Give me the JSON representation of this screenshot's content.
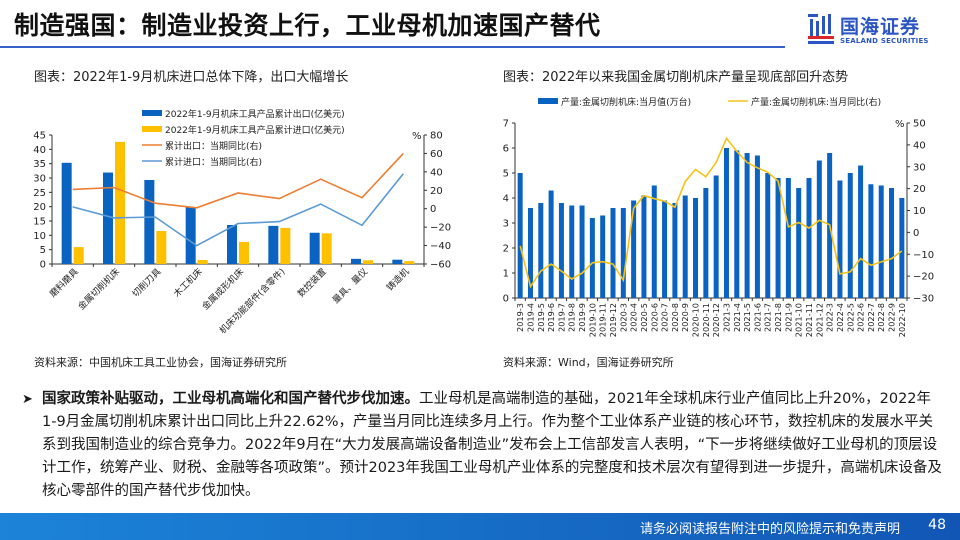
{
  "header": {
    "title": "制造强国：制造业投资上行，工业母机加速国产替代",
    "logo_cn": "国海证券",
    "logo_en": "SEALAND SECURITIES",
    "accent": "#3561c9"
  },
  "left_panel": {
    "title": "图表：2022年1-9月机床进口总体下降，出口大幅增长",
    "source": "资料来源：中国机床工具工业协会，国海证券研究所"
  },
  "right_panel": {
    "title": "图表：2022年以来我国金属切削机床产量呈现底部回升态势",
    "source": "资料来源：Wind，国海证券研究所"
  },
  "chart_data": [
    {
      "type": "bar",
      "title": "2022年1-9月机床进口总体下降，出口大幅增长",
      "categories": [
        "磨料磨具",
        "金属切削机床",
        "切削刀具",
        "木工机床",
        "金属成形机床",
        "机床功能部件(含零件)",
        "数控装置",
        "量具、量仪",
        "铸造机"
      ],
      "series": [
        {
          "name": "2022年1-9月机床工具产品累计出口(亿美元)",
          "type": "bar",
          "axis": "left",
          "color": "#0a63c0",
          "values": [
            35.3,
            31.9,
            29.3,
            19.8,
            13.6,
            13.3,
            10.9,
            1.8,
            1.5
          ]
        },
        {
          "name": "2022年1-9月机床工具产品累计进口(亿美元)",
          "type": "bar",
          "axis": "left",
          "color": "#ffc000",
          "values": [
            5.9,
            42.6,
            11.5,
            1.4,
            7.7,
            12.6,
            10.7,
            1.3,
            1.0
          ]
        },
        {
          "name": "累计出口：当期同比(右)",
          "type": "line",
          "axis": "right",
          "color": "#ed7d31",
          "values": [
            21,
            23,
            6,
            1,
            17,
            11,
            32,
            12,
            60
          ]
        },
        {
          "name": "累计进口：当期同比(右)",
          "type": "line",
          "axis": "right",
          "color": "#5b9bd5",
          "values": [
            2,
            -10,
            -9,
            -40,
            -16,
            -14,
            5,
            -18,
            38
          ]
        }
      ],
      "ylim": [
        0,
        45
      ],
      "yticks": [
        0,
        5,
        10,
        15,
        20,
        25,
        30,
        35,
        40,
        45
      ],
      "y2lim": [
        -60,
        80
      ],
      "y2ticks": [
        -60,
        -40,
        -20,
        0,
        20,
        40,
        60,
        80
      ],
      "y2label": "%",
      "legend": "top-center",
      "grid": false
    },
    {
      "type": "bar",
      "title": "2022年以来我国金属切削机床产量呈现底部回升态势",
      "categories": [
        "2019-3",
        "2019-4",
        "2019-5",
        "2019-6",
        "2019-7",
        "2019-8",
        "2019-9",
        "2019-10",
        "2019-11",
        "2019-12",
        "2020-3",
        "2020-4",
        "2020-5",
        "2020-6",
        "2020-7",
        "2020-8",
        "2020-9",
        "2020-10",
        "2020-11",
        "2020-12",
        "2021-3",
        "2021-4",
        "2021-5",
        "2021-6",
        "2021-7",
        "2021-8",
        "2021-9",
        "2021-10",
        "2021-11",
        "2021-12",
        "2022-3",
        "2022-4",
        "2022-5",
        "2022-6",
        "2022-7",
        "2022-8",
        "2022-9",
        "2022-10"
      ],
      "series": [
        {
          "name": "产量:金属切削机床:当月值(万台)",
          "type": "bar",
          "axis": "left",
          "color": "#0a63c0",
          "values": [
            5.0,
            3.6,
            3.8,
            4.3,
            3.8,
            3.7,
            3.7,
            3.2,
            3.3,
            3.6,
            3.6,
            3.9,
            4.1,
            4.5,
            3.9,
            3.8,
            4.1,
            4.0,
            4.4,
            4.9,
            6.0,
            5.9,
            5.8,
            5.7,
            5.0,
            4.8,
            4.8,
            4.4,
            4.8,
            5.5,
            5.8,
            4.7,
            5.0,
            5.3,
            4.55,
            4.5,
            4.4,
            4.0
          ]
        },
        {
          "name": "产量:金属切削机床:当月同比(右)",
          "type": "line",
          "axis": "right",
          "color": "#f5c318",
          "values": [
            -6.2,
            -24.8,
            -17.7,
            -14.5,
            -17.7,
            -21.3,
            -18.6,
            -13.9,
            -13.4,
            -14.5,
            -21.8,
            11.0,
            16.8,
            15.4,
            14.3,
            11.5,
            23.2,
            28.8,
            25.4,
            32.0,
            43.0,
            37.0,
            32.0,
            29.5,
            27.5,
            23.5,
            2.5,
            4.5,
            2.0,
            5.5,
            3.5,
            -19.0,
            -18.0,
            -12.0,
            -15.0,
            -13.5,
            -12.0,
            -8.5
          ]
        }
      ],
      "ylim": [
        0,
        7
      ],
      "yticks": [
        0,
        1,
        2,
        3,
        4,
        5,
        6,
        7
      ],
      "y2lim": [
        -30,
        50
      ],
      "y2ticks": [
        -30,
        -20,
        -10,
        0,
        10,
        20,
        30,
        40,
        50
      ],
      "y2label": "%",
      "legend": "top",
      "grid": false
    }
  ],
  "body": {
    "bullet_bold": "国家政策补贴驱动，工业母机高端化和国产替代步伐加速。",
    "bullet_text": "工业母机是高端制造的基础，2021年全球机床行业产值同比上升20%，2022年1-9月金属切削机床累计出口同比上升22.62%，产量当月同比连续多月上行。作为整个工业体系产业链的核心环节，数控机床的发展水平关系到我国制造业的综合竞争力。2022年9月在“大力发展高端设备制造业”发布会上工信部发言人表明，“下一步将继续做好工业母机的顶层设计工作，统筹产业、财税、金融等各项政策”。预计2023年我国工业母机产业体系的完整度和技术层次有望得到进一步提升，高端机床设备及核心零部件的国产替代步伐加快。",
    "bullet_icon": "arrow-bullet-icon"
  },
  "footer": {
    "disclaimer": "请务必阅读报告附注中的风险提示和免责声明",
    "page": "48"
  }
}
